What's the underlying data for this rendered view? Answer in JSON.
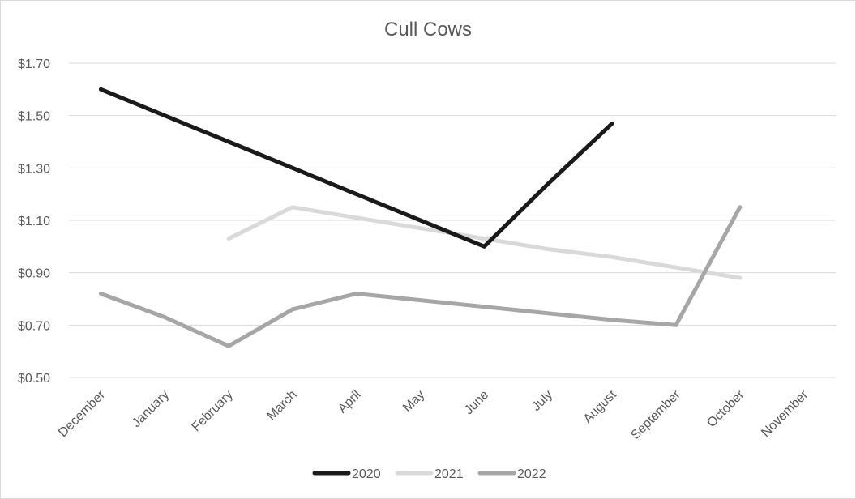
{
  "chart_data": {
    "type": "line",
    "title": "Cull Cows",
    "xlabel": "",
    "ylabel": "",
    "categories": [
      "December",
      "January",
      "February",
      "March",
      "April",
      "May",
      "June",
      "July",
      "August",
      "September",
      "October",
      "November"
    ],
    "y_ticks": [
      "$0.50",
      "$0.70",
      "$0.90",
      "$1.10",
      "$1.30",
      "$1.50",
      "$1.70"
    ],
    "ylim": [
      0.5,
      1.7
    ],
    "grid": true,
    "legend_position": "bottom",
    "series": [
      {
        "name": "2020",
        "color": "#1a1a1a",
        "values": [
          1.6,
          1.5,
          1.4,
          1.3,
          1.2,
          1.1,
          1.0,
          1.24,
          1.47,
          null,
          null,
          null
        ]
      },
      {
        "name": "2021",
        "color": "#d9d9d9",
        "values": [
          null,
          null,
          1.03,
          1.15,
          1.11,
          1.07,
          1.03,
          0.99,
          0.96,
          0.92,
          0.88,
          null
        ]
      },
      {
        "name": "2022",
        "color": "#a6a6a6",
        "values": [
          0.82,
          0.73,
          0.62,
          0.76,
          0.82,
          0.795,
          0.77,
          0.745,
          0.72,
          0.7,
          1.15,
          null
        ]
      }
    ]
  }
}
